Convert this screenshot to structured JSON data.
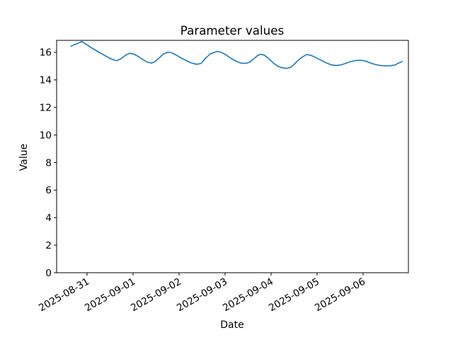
{
  "chart_data": {
    "type": "line",
    "title": "Parameter values",
    "xlabel": "Date",
    "ylabel": "Value",
    "x_tick_labels": [
      "2025-08-31",
      "2025-09-01",
      "2025-09-02",
      "2025-09-03",
      "2025-09-04",
      "2025-09-05",
      "2025-09-06"
    ],
    "y_tick_labels": [
      "0",
      "2",
      "4",
      "6",
      "8",
      "10",
      "12",
      "14",
      "16"
    ],
    "y_ticks": [
      0,
      2,
      4,
      6,
      8,
      10,
      12,
      14,
      16
    ],
    "ylim": [
      0,
      16.87
    ],
    "xlim_days": [
      -0.66,
      6.99
    ],
    "x_unit": "days since 2025-08-31",
    "grid": false,
    "legend": null,
    "line_color": "#1f77b4",
    "background_color": "#ffffff",
    "series": [
      {
        "name": "Parameter values",
        "points": [
          [
            -0.35,
            16.45
          ],
          [
            -0.28,
            16.55
          ],
          [
            -0.2,
            16.65
          ],
          [
            -0.14,
            16.75
          ],
          [
            -0.11,
            16.78
          ],
          [
            -0.05,
            16.65
          ],
          [
            0.02,
            16.5
          ],
          [
            0.12,
            16.28
          ],
          [
            0.25,
            16.02
          ],
          [
            0.38,
            15.78
          ],
          [
            0.49,
            15.58
          ],
          [
            0.58,
            15.45
          ],
          [
            0.65,
            15.4
          ],
          [
            0.73,
            15.52
          ],
          [
            0.83,
            15.78
          ],
          [
            0.92,
            15.93
          ],
          [
            1.0,
            15.9
          ],
          [
            1.1,
            15.73
          ],
          [
            1.2,
            15.5
          ],
          [
            1.3,
            15.3
          ],
          [
            1.4,
            15.22
          ],
          [
            1.48,
            15.33
          ],
          [
            1.57,
            15.6
          ],
          [
            1.66,
            15.88
          ],
          [
            1.76,
            16.02
          ],
          [
            1.85,
            15.95
          ],
          [
            1.95,
            15.78
          ],
          [
            2.05,
            15.58
          ],
          [
            2.15,
            15.42
          ],
          [
            2.25,
            15.25
          ],
          [
            2.38,
            15.13
          ],
          [
            2.48,
            15.2
          ],
          [
            2.57,
            15.55
          ],
          [
            2.68,
            15.9
          ],
          [
            2.83,
            16.07
          ],
          [
            2.92,
            16.0
          ],
          [
            3.02,
            15.82
          ],
          [
            3.12,
            15.58
          ],
          [
            3.23,
            15.38
          ],
          [
            3.33,
            15.23
          ],
          [
            3.45,
            15.2
          ],
          [
            3.53,
            15.28
          ],
          [
            3.63,
            15.55
          ],
          [
            3.72,
            15.8
          ],
          [
            3.78,
            15.86
          ],
          [
            3.85,
            15.8
          ],
          [
            3.95,
            15.55
          ],
          [
            4.05,
            15.22
          ],
          [
            4.15,
            14.98
          ],
          [
            4.25,
            14.87
          ],
          [
            4.35,
            14.84
          ],
          [
            4.45,
            14.96
          ],
          [
            4.55,
            15.3
          ],
          [
            4.66,
            15.62
          ],
          [
            4.77,
            15.84
          ],
          [
            4.87,
            15.78
          ],
          [
            4.97,
            15.62
          ],
          [
            5.08,
            15.44
          ],
          [
            5.18,
            15.26
          ],
          [
            5.3,
            15.1
          ],
          [
            5.4,
            15.05
          ],
          [
            5.51,
            15.08
          ],
          [
            5.62,
            15.2
          ],
          [
            5.72,
            15.32
          ],
          [
            5.82,
            15.4
          ],
          [
            5.94,
            15.43
          ],
          [
            6.05,
            15.37
          ],
          [
            6.15,
            15.24
          ],
          [
            6.26,
            15.12
          ],
          [
            6.37,
            15.05
          ],
          [
            6.48,
            15.02
          ],
          [
            6.58,
            15.03
          ],
          [
            6.69,
            15.08
          ],
          [
            6.77,
            15.22
          ],
          [
            6.85,
            15.33
          ]
        ]
      }
    ]
  }
}
